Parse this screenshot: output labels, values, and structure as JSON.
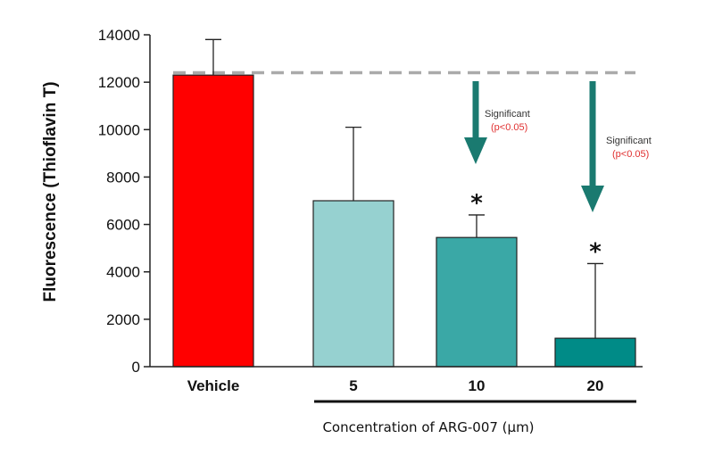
{
  "chart_data": {
    "type": "bar",
    "title": "",
    "xlabel": "Concentration of ARG-007 (µm)",
    "ylabel": "Fluorescence (Thioflavin T)",
    "ylim": [
      0,
      14000
    ],
    "yticks": [
      "0",
      "2000",
      "4000",
      "6000",
      "8000",
      "10000",
      "12000",
      "14000"
    ],
    "categories": [
      "Vehicle",
      "5",
      "10",
      "20"
    ],
    "values": [
      12300,
      7000,
      5450,
      1200
    ],
    "errors": [
      1500,
      3100,
      950,
      3150
    ],
    "colors": [
      "#ff0000",
      "#96d1d0",
      "#3aa8a6",
      "#008b87"
    ],
    "reference_line": 12400,
    "markers": [
      "",
      "",
      "*",
      "*"
    ],
    "annotations": [
      {
        "category": "10",
        "text": "Significant",
        "p": "(p<0.05)"
      },
      {
        "category": "20",
        "text": "Significant",
        "p": "(p<0.05)"
      }
    ],
    "arrow_color": "#1a7a70"
  }
}
